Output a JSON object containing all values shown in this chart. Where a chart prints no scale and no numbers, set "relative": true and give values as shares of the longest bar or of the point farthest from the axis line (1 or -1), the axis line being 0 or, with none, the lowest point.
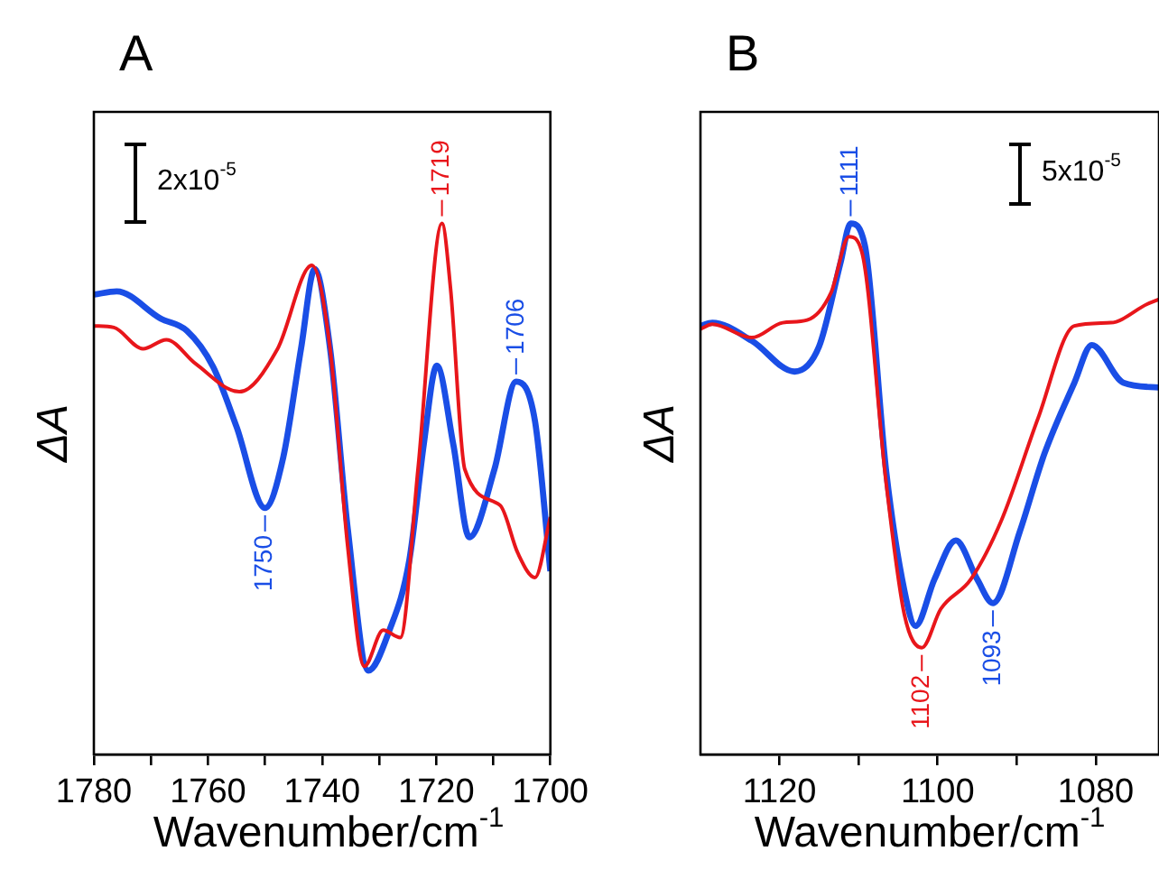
{
  "chart_data": [
    {
      "type": "line",
      "title": "A",
      "xlabel": "Wavenumber/cm$^{-1}$",
      "ylabel": "ΔA",
      "relative": true,
      "xlim": [
        1780,
        1700
      ],
      "xticks": [
        1780,
        {
          "value": 1770,
          "label": null
        },
        1760,
        {
          "value": 1750,
          "label": null
        },
        1740,
        {
          "value": 1730,
          "label": null
        },
        1720,
        {
          "value": 1710,
          "label": null
        },
        1700
      ],
      "series": [
        {
          "color": "#e8161b",
          "x": [
            1780,
            1776.5,
            1771.4,
            1767.3,
            1762.2,
            1754.5,
            1747.8,
            1741.8,
            1738.6,
            1735.5,
            1732.6,
            1729.3,
            1726.3,
            1723.2,
            1719,
            1717.5,
            1715,
            1708.8,
            1705.7,
            1702.7,
            1700
          ],
          "values": [
            0.807,
            0.804,
            0.764,
            0.781,
            0.736,
            0.683,
            0.764,
            0.921,
            0.764,
            0.39,
            0.166,
            0.234,
            0.22,
            0.537,
            1,
            0.878,
            0.537,
            0.469,
            0.379,
            0.333,
            0.447
          ]
        },
        {
          "color": "#1a4ee6",
          "x": [
            1780,
            1776,
            1768.3,
            1763.7,
            1759.1,
            1755,
            1750,
            1746.8,
            1743.7,
            1741.3,
            1738.6,
            1735.5,
            1731.9,
            1728.3,
            1724.7,
            1722.2,
            1719.9,
            1717,
            1714.2,
            1709.8,
            1706,
            1702.7,
            1700
          ],
          "values": [
            0.866,
            0.872,
            0.821,
            0.798,
            0.73,
            0.617,
            0.464,
            0.56,
            0.764,
            0.914,
            0.764,
            0.424,
            0.158,
            0.231,
            0.367,
            0.583,
            0.732,
            0.583,
            0.409,
            0.537,
            0.702,
            0.628,
            0.345
          ]
        }
      ],
      "annotations": [
        {
          "text": "1719",
          "x": 1719,
          "y": 1
        },
        {
          "text": "1750",
          "x": 1750,
          "y": 0.464
        },
        {
          "text": "1706",
          "x": 1706,
          "y": 0.702
        },
        "2x10$^{-5}$"
      ]
    },
    {
      "type": "line",
      "title": "B",
      "xlabel": "Wavenumber/cm$^{-1}$",
      "ylabel": "ΔA",
      "relative": true,
      "xlim": [
        1130,
        1072
      ],
      "xticks": [
        1120,
        {
          "value": 1110,
          "label": null
        },
        1100,
        {
          "value": 1090,
          "label": null
        },
        1080
      ],
      "series": [
        {
          "color": "#e8161b",
          "x": [
            1130,
            1128.5,
            1123.5,
            1119.6,
            1116.5,
            1113.5,
            1111.2,
            1109.6,
            1106.5,
            1104.2,
            1102,
            1099.6,
            1095.8,
            1091.9,
            1087.3,
            1082.7,
            1078.1,
            1073.5,
            1072
          ],
          "values": [
            0.801,
            0.81,
            0.785,
            0.813,
            0.818,
            0.869,
            0.975,
            0.947,
            0.51,
            0.263,
            0.201,
            0.274,
            0.33,
            0.442,
            0.633,
            0.807,
            0.813,
            0.848,
            0.857
          ]
        },
        {
          "color": "#1a4ee6",
          "x": [
            1130,
            1128.5,
            1123.5,
            1118.1,
            1115,
            1112.3,
            1111,
            1109.2,
            1106.5,
            1104.2,
            1102.8,
            1100.4,
            1097.7,
            1095,
            1093,
            1089.6,
            1086.5,
            1082.7,
            1080.5,
            1076.5,
            1072
          ],
          "values": [
            0.807,
            0.813,
            0.779,
            0.721,
            0.768,
            0.925,
            1,
            0.958,
            0.532,
            0.308,
            0.242,
            0.33,
            0.403,
            0.33,
            0.285,
            0.42,
            0.566,
            0.7,
            0.771,
            0.7,
            0.691
          ]
        }
      ],
      "annotations": [
        {
          "text": "1111",
          "x": 1111,
          "y": 1
        },
        {
          "text": "1102",
          "x": 1102,
          "y": 0.201
        },
        {
          "text": "1093",
          "x": 1093,
          "y": 0.285
        },
        "5x10$^{-5}$"
      ]
    }
  ]
}
